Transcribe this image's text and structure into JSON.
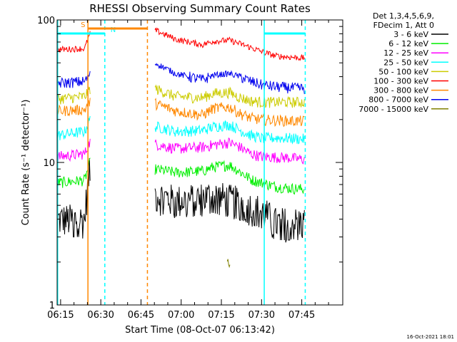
{
  "chart_data": {
    "type": "line",
    "title": "RHESSI Observing Summary Count Rates",
    "xlabel": "Start Time (08-Oct-07 06:13:42)",
    "ylabel": "Count Rate (s⁻¹ detector⁻¹)",
    "y_scale": "log",
    "ylim": [
      1,
      100
    ],
    "y_ticks": [
      {
        "value": 1,
        "label": "1"
      },
      {
        "value": 10,
        "label": "10"
      },
      {
        "value": 100,
        "label": "100"
      }
    ],
    "xlim_minutes": [
      373.7,
      480.3
    ],
    "x_ticks": [
      {
        "minute": 375,
        "label": "06:15"
      },
      {
        "minute": 390,
        "label": "06:30"
      },
      {
        "minute": 405,
        "label": "06:45"
      },
      {
        "minute": 420,
        "label": "07:00"
      },
      {
        "minute": 435,
        "label": "07:15"
      },
      {
        "minute": 450,
        "label": "07:30"
      },
      {
        "minute": 465,
        "label": "07:45"
      }
    ],
    "legend": {
      "position": "right",
      "header": [
        "Det 1,3,4,5,6,9,",
        "FDecim 1, Att 0"
      ]
    },
    "series": [
      {
        "name": "3 - 6 keV",
        "color": "#000000",
        "x": [
          374,
          384,
          386,
          395,
          405,
          410,
          418,
          428,
          432,
          438,
          442,
          446,
          450,
          455,
          460,
          466
        ],
        "y": [
          4.0,
          4.0,
          9.0,
          null,
          null,
          6.0,
          5.4,
          5.7,
          5.9,
          5.5,
          5.3,
          4.9,
          4.6,
          3.8,
          3.8,
          3.8
        ]
      },
      {
        "name": "6 - 12 keV",
        "color": "#00ee00",
        "x": [
          374,
          384,
          386,
          395,
          405,
          410,
          418,
          428,
          432,
          438,
          442,
          446,
          450,
          455,
          460,
          466
        ],
        "y": [
          7.2,
          7.5,
          10.0,
          null,
          null,
          9.0,
          8.5,
          8.7,
          9.3,
          9.6,
          8.6,
          7.6,
          7.2,
          6.8,
          6.6,
          6.5
        ]
      },
      {
        "name": "12 - 25 keV",
        "color": "#ff00ff",
        "x": [
          374,
          384,
          386,
          395,
          405,
          410,
          418,
          428,
          432,
          438,
          442,
          446,
          450,
          455,
          460,
          466
        ],
        "y": [
          11.0,
          11.5,
          14.0,
          null,
          null,
          13.5,
          12.5,
          12.8,
          13.3,
          13.8,
          12.8,
          11.5,
          11.0,
          10.9,
          10.8,
          10.5
        ]
      },
      {
        "name": "25 - 50 keV",
        "color": "#00ffff",
        "x": [
          374,
          384,
          386,
          395,
          405,
          410,
          418,
          428,
          432,
          438,
          442,
          446,
          450,
          455,
          460,
          466
        ],
        "y": [
          15.5,
          16.5,
          20.0,
          null,
          null,
          18.0,
          16.5,
          16.8,
          17.8,
          18.4,
          16.8,
          15.5,
          14.8,
          14.9,
          14.8,
          14.6
        ]
      },
      {
        "name": "50 - 100 keV",
        "color": "#cccc00",
        "x": [
          374,
          384,
          386,
          395,
          405,
          410,
          418,
          428,
          432,
          438,
          442,
          446,
          450,
          455,
          460,
          466
        ],
        "y": [
          28.0,
          29.0,
          33.0,
          null,
          null,
          33.0,
          29.0,
          28.5,
          30.5,
          31.0,
          28.5,
          27.0,
          26.5,
          26.5,
          26.5,
          26.5
        ]
      },
      {
        "name": "100 - 300 keV",
        "color": "#ff0000",
        "x": [
          374,
          384,
          386,
          395,
          405,
          410,
          418,
          428,
          432,
          438,
          442,
          446,
          450,
          455,
          460,
          466
        ],
        "y": [
          62,
          63,
          80,
          null,
          null,
          85,
          73,
          67,
          71,
          72,
          68,
          64,
          60,
          56,
          55,
          54
        ]
      },
      {
        "name": "300 - 800 keV",
        "color": "#ff8800",
        "x": [
          374,
          384,
          386,
          395,
          405,
          410,
          418,
          428,
          432,
          438,
          442,
          446,
          450,
          455,
          460,
          466
        ],
        "y": [
          23.0,
          23.5,
          27.0,
          null,
          null,
          26.0,
          23.0,
          21.5,
          24.0,
          24.5,
          22.0,
          20.5,
          20.0,
          19.8,
          19.6,
          19.5
        ]
      },
      {
        "name": "800 - 7000 keV",
        "color": "#0000ee",
        "x": [
          374,
          384,
          386,
          395,
          405,
          410,
          418,
          428,
          432,
          438,
          442,
          446,
          450,
          455,
          460,
          466
        ],
        "y": [
          36,
          37,
          42,
          null,
          null,
          50,
          42,
          38,
          41,
          42,
          40,
          37,
          35,
          34,
          33.5,
          33
        ]
      },
      {
        "name": "7000 - 15000 keV",
        "color": "#808000",
        "x": [
          437.2,
          437.6,
          438.0,
          438.4
        ],
        "y": [
          1.9,
          2.0,
          1.8,
          1.9
        ]
      }
    ],
    "annotations": [
      {
        "type": "vline",
        "minute": 373.9,
        "color": "#00ffff",
        "style": "solid"
      },
      {
        "type": "vline",
        "minute": 385.2,
        "color": "#ff8800",
        "style": "solid"
      },
      {
        "type": "vline",
        "minute": 391.5,
        "color": "#00ffff",
        "style": "dashed"
      },
      {
        "type": "vline",
        "minute": 407.4,
        "color": "#ff8800",
        "style": "dashed"
      },
      {
        "type": "vline",
        "minute": 451.0,
        "color": "#00ffff",
        "style": "solid"
      },
      {
        "type": "vline",
        "minute": 466.3,
        "color": "#00ffff",
        "style": "dashed"
      },
      {
        "type": "bar",
        "label": "N",
        "from": 373.9,
        "to": 391.5,
        "color": "#00ffff"
      },
      {
        "type": "bar",
        "label": "S",
        "from": 385.2,
        "to": 407.4,
        "color": "#ff8800"
      },
      {
        "type": "bar",
        "label": "",
        "from": 451.0,
        "to": 466.3,
        "color": "#00ffff"
      }
    ],
    "grid": false
  },
  "footer": {
    "timestamp": "16-Oct-2021 18:01"
  }
}
